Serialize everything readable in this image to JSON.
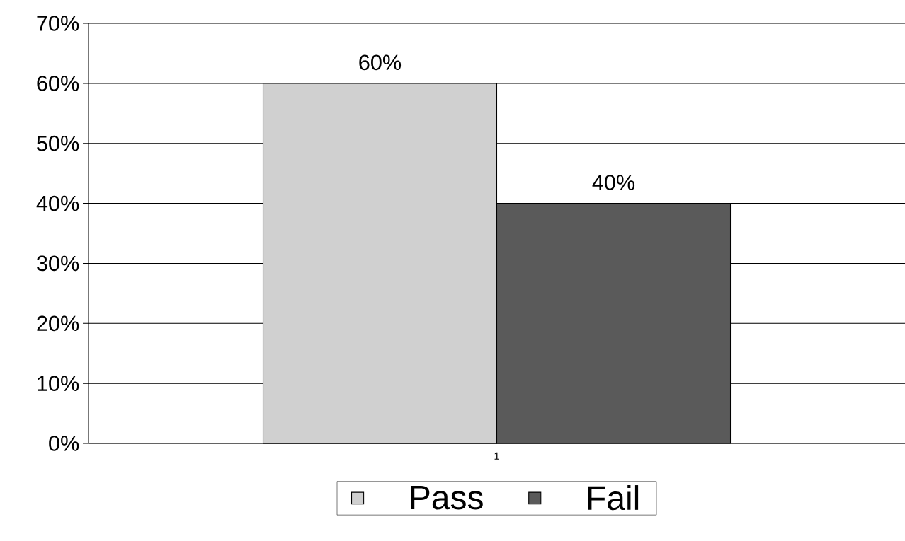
{
  "chart_data": {
    "type": "bar",
    "categories": [
      "1"
    ],
    "series": [
      {
        "name": "Pass",
        "color": "#d0d0d0",
        "values": [
          60
        ],
        "value_labels": [
          "60%"
        ]
      },
      {
        "name": "Fail",
        "color": "#5a5a5a",
        "values": [
          40
        ],
        "value_labels": [
          "40%"
        ]
      }
    ],
    "ylim": [
      0,
      70
    ],
    "yticks": [
      {
        "value": 0,
        "label": "0%"
      },
      {
        "value": 10,
        "label": "10%"
      },
      {
        "value": 20,
        "label": "20%"
      },
      {
        "value": 30,
        "label": "30%"
      },
      {
        "value": 40,
        "label": "40%"
      },
      {
        "value": 50,
        "label": "50%"
      },
      {
        "value": 60,
        "label": "60%"
      },
      {
        "value": 70,
        "label": "70%"
      }
    ],
    "grid": "y",
    "legend": "bottom"
  }
}
